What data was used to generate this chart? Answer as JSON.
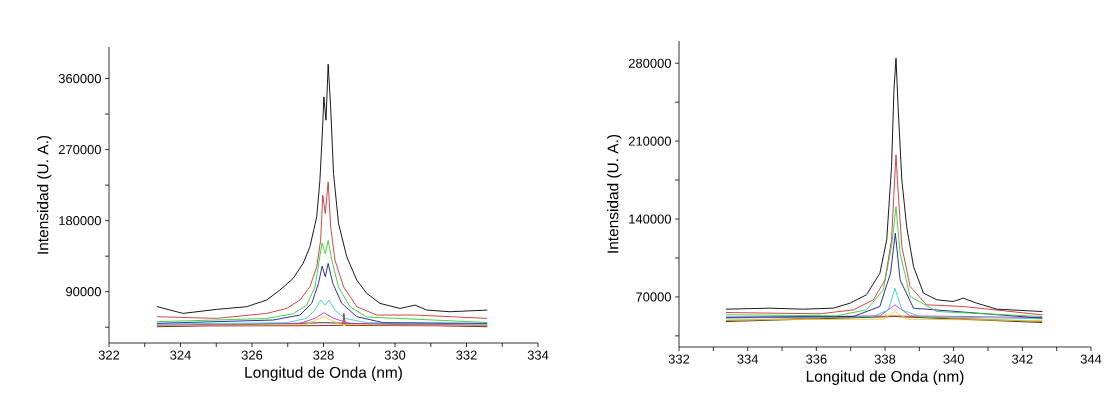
{
  "chart_data": [
    {
      "type": "line",
      "xlabel": "Longitud de Onda (nm)",
      "ylabel": "Intensidad (U. A.)",
      "line_style": "solid",
      "marker": "none",
      "xlim": [
        322,
        334
      ],
      "ylim": [
        25000,
        400000
      ],
      "xticks": [
        322,
        {
          "value": 323,
          "label": null
        },
        324,
        {
          "value": 325,
          "label": null
        },
        326,
        {
          "value": 327,
          "label": null
        },
        328,
        {
          "value": 329,
          "label": null
        },
        330,
        {
          "value": 331,
          "label": null
        },
        332,
        {
          "value": 333,
          "label": null
        },
        334
      ],
      "yticks": [
        {
          "value": 45000,
          "label": null
        },
        90000,
        {
          "value": 135000,
          "label": null
        },
        180000,
        {
          "value": 225000,
          "label": null
        },
        270000,
        {
          "value": 315000,
          "label": null
        },
        360000
      ],
      "series": [
        {
          "color": "#2b2b00",
          "x": [
            323.35,
            328.01,
            332.57
          ],
          "values": [
            45600,
            50700,
            45600
          ]
        },
        {
          "color": "#8b1a1a",
          "x": [
            323.35,
            327.34,
            328.54,
            328.57,
            328.61,
            332.57
          ],
          "values": [
            46500,
            46900,
            47300,
            62500,
            47300,
            46500
          ]
        },
        {
          "color": "#e6c833",
          "x": [
            323.35,
            327.53,
            328.01,
            328.46,
            332.57
          ],
          "values": [
            46900,
            48600,
            58300,
            48600,
            46900
          ]
        },
        {
          "color": "#cc33cc",
          "x": [
            323.35,
            327.34,
            327.76,
            328.01,
            328.28,
            328.74,
            332.57
          ],
          "values": [
            47800,
            49900,
            56200,
            63400,
            56200,
            49900,
            47800
          ]
        },
        {
          "color": "#33cccc",
          "x": [
            323.35,
            326.97,
            327.53,
            327.76,
            327.92,
            328.05,
            328.15,
            328.32,
            328.6,
            329.21,
            332.57
          ],
          "values": [
            49000,
            50700,
            56200,
            66700,
            79400,
            73100,
            79400,
            66700,
            56200,
            50700,
            49000
          ]
        },
        {
          "color": "#1a1a99",
          "x": [
            323.35,
            326.59,
            327.34,
            327.67,
            327.86,
            327.96,
            328.05,
            328.13,
            328.26,
            328.51,
            328.93,
            329.68,
            332.57
          ],
          "values": [
            49900,
            54100,
            60400,
            75200,
            100500,
            122400,
            108900,
            125800,
            100500,
            75200,
            58300,
            50700,
            49900
          ]
        },
        {
          "color": "#33cc33",
          "x": [
            323.35,
            326.41,
            327.15,
            327.53,
            327.76,
            327.88,
            327.96,
            328.05,
            328.13,
            328.23,
            328.42,
            328.74,
            329.21,
            332.57
          ],
          "values": [
            52000,
            56000,
            62000,
            73000,
            96000,
            130000,
            152000,
            138000,
            155000,
            130000,
            96000,
            71000,
            58000,
            51000
          ]
        },
        {
          "color": "#cc3333",
          "x": [
            323.35,
            325.01,
            326.41,
            326.97,
            327.34,
            327.62,
            327.81,
            327.92,
            327.98,
            328.05,
            328.13,
            328.2,
            328.32,
            328.56,
            328.93,
            329.49,
            330.56,
            332.57
          ],
          "values": [
            58300,
            56200,
            62500,
            68800,
            79400,
            96300,
            121600,
            155300,
            212300,
            189100,
            229200,
            172200,
            130000,
            96300,
            71000,
            60400,
            60400,
            56200
          ]
        },
        {
          "color": "#000000",
          "x": [
            323.35,
            324.07,
            325.01,
            325.85,
            326.41,
            326.78,
            327.15,
            327.43,
            327.62,
            327.81,
            327.9,
            327.98,
            328.01,
            328.07,
            328.13,
            328.2,
            328.28,
            328.42,
            328.65,
            328.93,
            329.21,
            329.58,
            330.14,
            330.56,
            330.89,
            331.54,
            332.57
          ],
          "values": [
            71000,
            62500,
            67600,
            71000,
            79400,
            92100,
            106800,
            125800,
            146900,
            184900,
            231300,
            303000,
            336800,
            307200,
            378100,
            324100,
            239700,
            176400,
            134200,
            104700,
            87800,
            75200,
            68800,
            73000,
            66700,
            64600,
            66700
          ]
        }
      ]
    },
    {
      "type": "line",
      "xlabel": "Longitud de Onda (nm)",
      "ylabel": "Intensidad (U. A.)",
      "line_style": "solid",
      "marker": "none",
      "xlim": [
        332,
        344
      ],
      "ylim": [
        25000,
        300000
      ],
      "xticks": [
        332,
        {
          "value": 333,
          "label": null
        },
        334,
        {
          "value": 335,
          "label": null
        },
        336,
        {
          "value": 337,
          "label": null
        },
        338,
        {
          "value": 339,
          "label": null
        },
        340,
        {
          "value": 341,
          "label": null
        },
        342,
        {
          "value": 343,
          "label": null
        },
        344
      ],
      "yticks": [
        {
          "value": 35000,
          "label": null
        },
        70000,
        {
          "value": 105000,
          "label": null
        },
        140000,
        {
          "value": 175000,
          "label": null
        },
        210000,
        {
          "value": 245000,
          "label": null
        },
        280000
      ],
      "series": [
        {
          "color": "#2b2b00",
          "x": [
            333.38,
            338.29,
            342.57
          ],
          "values": [
            47900,
            52400,
            47000
          ]
        },
        {
          "color": "#cc6622",
          "x": [
            333.38,
            338.29,
            342.57
          ],
          "values": [
            48800,
            53000,
            47900
          ]
        },
        {
          "color": "#e6c833",
          "x": [
            333.38,
            337.95,
            338.29,
            338.63,
            342.57
          ],
          "values": [
            49400,
            50000,
            56900,
            50000,
            48800
          ]
        },
        {
          "color": "#cc33cc",
          "x": [
            333.38,
            337.85,
            338.29,
            338.73,
            342.57
          ],
          "values": [
            51500,
            53000,
            62900,
            53000,
            51500
          ]
        },
        {
          "color": "#33cccc",
          "x": [
            333.38,
            337.66,
            338.1,
            338.29,
            338.49,
            339.02,
            342.57
          ],
          "values": [
            50900,
            52400,
            58400,
            77800,
            58400,
            52400,
            50300
          ]
        },
        {
          "color": "#1a1a99",
          "x": [
            333.38,
            337.08,
            337.85,
            338.16,
            338.3,
            338.44,
            338.83,
            342.57
          ],
          "values": [
            51800,
            52400,
            61400,
            91300,
            127300,
            85300,
            59900,
            50900
          ]
        },
        {
          "color": "#cc3333",
          "x": [
            333.38,
            336.1,
            337.08,
            337.66,
            338.0,
            338.19,
            338.29,
            338.32,
            338.36,
            338.49,
            338.73,
            339.21,
            340.28,
            342.57
          ],
          "values": [
            56000,
            54800,
            58400,
            67400,
            85300,
            121300,
            181200,
            197700,
            175200,
            115300,
            79400,
            62900,
            61400,
            53900
          ]
        },
        {
          "color": "#000000",
          "x": [
            333.38,
            334.64,
            335.62,
            336.49,
            336.98,
            337.46,
            337.85,
            338.05,
            338.19,
            338.26,
            338.32,
            338.38,
            338.49,
            338.63,
            338.83,
            339.12,
            339.51,
            339.99,
            340.28,
            340.67,
            341.26,
            342.57
          ],
          "values": [
            59000,
            59900,
            59000,
            59900,
            64400,
            71900,
            91300,
            121300,
            187200,
            256000,
            284500,
            241100,
            175200,
            133300,
            97300,
            73400,
            67400,
            65900,
            68900,
            64400,
            59000,
            56900
          ]
        },
        {
          "color": "#33cc33",
          "x": [
            333.38,
            336.59,
            337.46,
            337.95,
            338.19,
            338.32,
            338.44,
            338.73,
            339.51,
            342.57
          ],
          "values": [
            54000,
            53000,
            58400,
            76300,
            115300,
            151200,
            109300,
            70400,
            56900,
            52400
          ]
        }
      ]
    }
  ]
}
